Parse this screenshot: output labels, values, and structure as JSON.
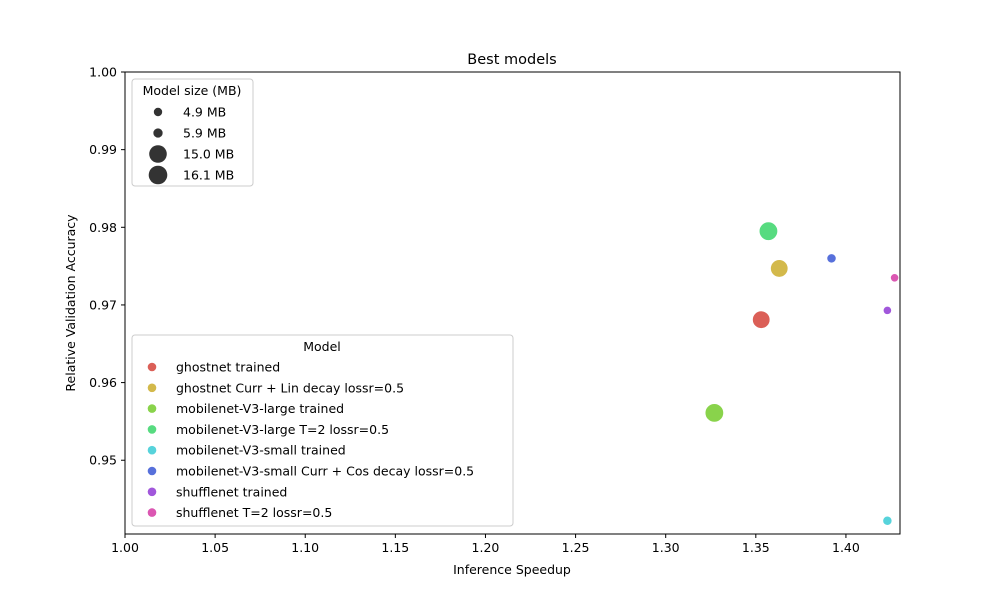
{
  "chart_data": {
    "type": "scatter",
    "title": "Best models",
    "xlabel": "Inference Speedup",
    "ylabel": "Relative Validation Accuracy",
    "xlim": [
      1.0,
      1.43
    ],
    "ylim": [
      0.9405,
      1.0
    ],
    "xticks": [
      "1.00",
      "1.05",
      "1.10",
      "1.15",
      "1.20",
      "1.25",
      "1.30",
      "1.35",
      "1.40"
    ],
    "yticks": [
      "0.95",
      "0.96",
      "0.97",
      "0.98",
      "0.99",
      "1.00"
    ],
    "grid": false,
    "size_legend": {
      "title": "Model size (MB)",
      "placement": "upper-left",
      "entries": [
        {
          "label": "4.9 MB",
          "size_mb": 4.9
        },
        {
          "label": "5.9 MB",
          "size_mb": 5.9
        },
        {
          "label": "15.0 MB",
          "size_mb": 15.0
        },
        {
          "label": "16.1 MB",
          "size_mb": 16.1
        }
      ]
    },
    "legend": {
      "title": "Model",
      "placement": "lower-left"
    },
    "series": [
      {
        "name": "ghostnet trained",
        "color": "#db5f57",
        "x": 1.353,
        "y": 0.9681,
        "size_mb": 15.0
      },
      {
        "name": "ghostnet Curr + Lin decay lossr=0.5",
        "color": "#d3b94b",
        "x": 1.363,
        "y": 0.9747,
        "size_mb": 15.0
      },
      {
        "name": "mobilenet-V3-large trained",
        "color": "#89d34b",
        "x": 1.327,
        "y": 0.9561,
        "size_mb": 16.1
      },
      {
        "name": "mobilenet-V3-large T=2 lossr=0.5",
        "color": "#57db80",
        "x": 1.357,
        "y": 0.9795,
        "size_mb": 16.1
      },
      {
        "name": "mobilenet-V3-small trained",
        "color": "#57d3db",
        "x": 1.423,
        "y": 0.9422,
        "size_mb": 5.9
      },
      {
        "name": "mobilenet-V3-small Curr + Cos decay lossr=0.5",
        "color": "#5770db",
        "x": 1.392,
        "y": 0.976,
        "size_mb": 5.9
      },
      {
        "name": "shufflenet trained",
        "color": "#a157db",
        "x": 1.423,
        "y": 0.9693,
        "size_mb": 4.9
      },
      {
        "name": "shufflenet T=2 lossr=0.5",
        "color": "#db57b2",
        "x": 1.427,
        "y": 0.9735,
        "size_mb": 4.9
      }
    ]
  }
}
